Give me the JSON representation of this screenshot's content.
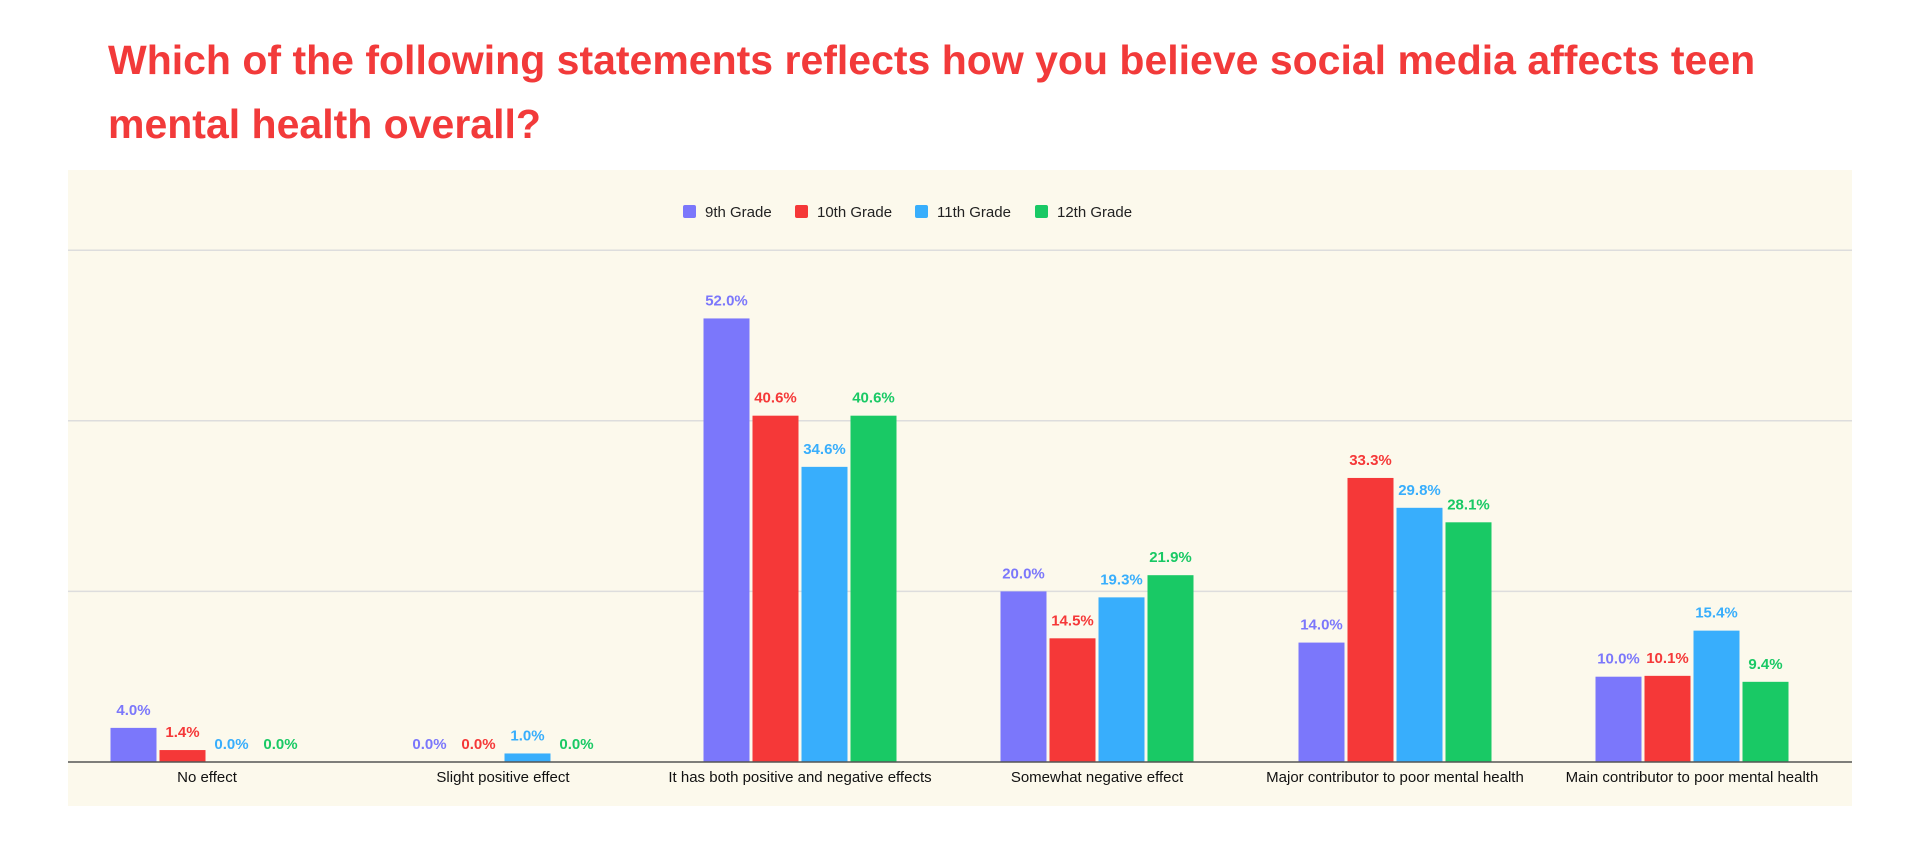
{
  "page": {
    "title": "Which of the following statements reflects how you believe social media affects teen mental health overall?"
  },
  "colors": {
    "background": "#fcf9ec",
    "title": "#f23a3a",
    "gridline": "#dddddd",
    "baseline": "#555555"
  },
  "chart_data": {
    "type": "bar",
    "title": "Which of the following statements reflects how you believe social media affects teen mental health overall?",
    "xlabel": "",
    "ylabel": "",
    "ylim": [
      0,
      60
    ],
    "grid": true,
    "legend_position": "top-center",
    "categories": [
      "No effect",
      "Slight positive effect",
      "It has both positive and negative effects",
      "Somewhat negative effect",
      "Major contributor to poor mental health",
      "Main contributor to poor mental health"
    ],
    "series": [
      {
        "name": "9th Grade",
        "color": "#7b77fb",
        "values": [
          4.0,
          0.0,
          52.0,
          20.0,
          14.0,
          10.0
        ],
        "labels": [
          "4.0%",
          "0.0%",
          "52.0%",
          "20.0%",
          "14.0%",
          "10.0%"
        ]
      },
      {
        "name": "10th Grade",
        "color": "#f53838",
        "values": [
          1.4,
          0.0,
          40.6,
          14.5,
          33.3,
          10.1
        ],
        "labels": [
          "1.4%",
          "0.0%",
          "40.6%",
          "14.5%",
          "33.3%",
          "10.1%"
        ]
      },
      {
        "name": "11th Grade",
        "color": "#38aefc",
        "values": [
          0.0,
          1.0,
          34.6,
          19.3,
          29.8,
          15.4
        ],
        "labels": [
          "0.0%",
          "1.0%",
          "34.6%",
          "19.3%",
          "29.8%",
          "15.4%"
        ]
      },
      {
        "name": "12th Grade",
        "color": "#19c965",
        "values": [
          0.0,
          0.0,
          40.6,
          21.9,
          28.1,
          9.4
        ],
        "labels": [
          "0.0%",
          "0.0%",
          "40.6%",
          "21.9%",
          "28.1%",
          "9.4%"
        ]
      }
    ]
  }
}
